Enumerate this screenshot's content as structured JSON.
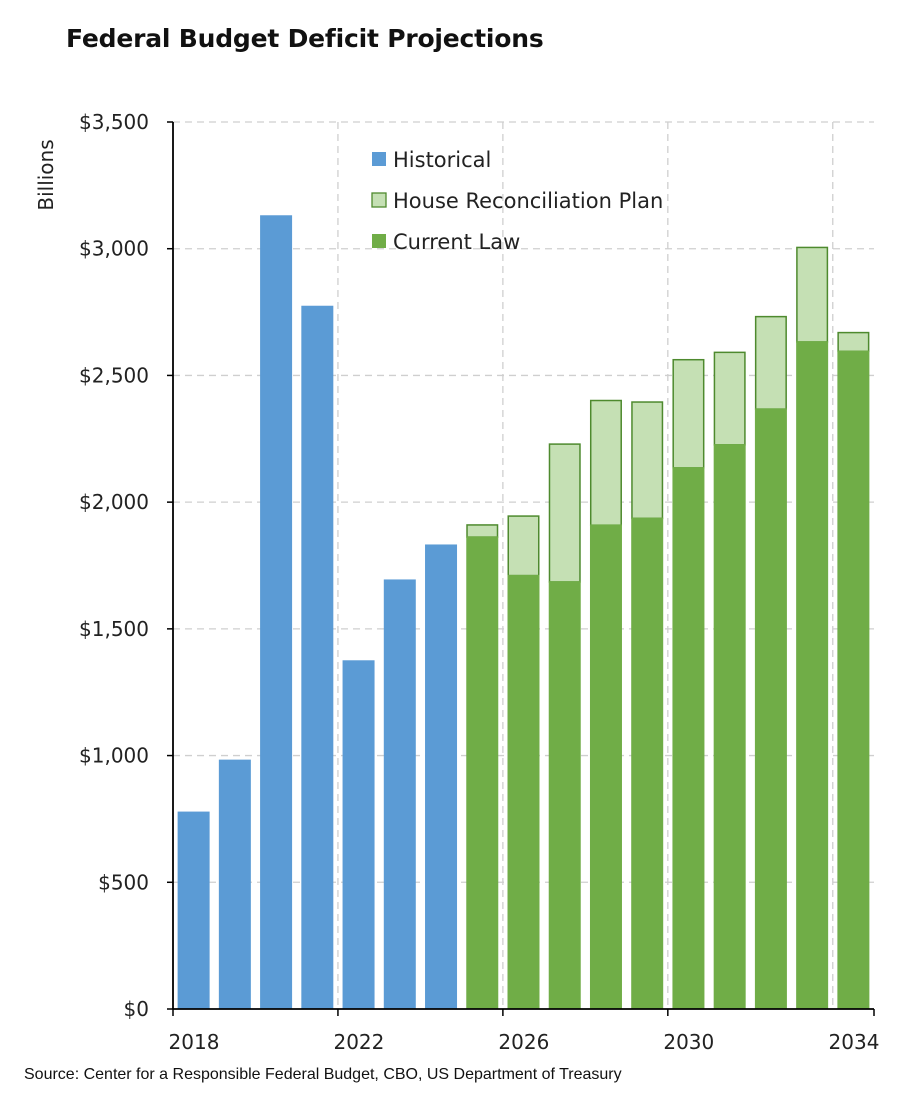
{
  "chart_data": {
    "type": "bar",
    "title": "Federal Budget Deficit Projections",
    "ylabel": "Billions",
    "ylim": [
      0,
      3500
    ],
    "yticks": [
      0,
      500,
      1000,
      1500,
      2000,
      2500,
      3000,
      3500
    ],
    "ytick_labels": [
      "$0",
      "$500",
      "$1,000",
      "$1,500",
      "$2,000",
      "$2,500",
      "$3,000",
      "$3,500"
    ],
    "categories": [
      2018,
      2019,
      2020,
      2021,
      2022,
      2023,
      2024,
      2025,
      2026,
      2027,
      2028,
      2029,
      2030,
      2031,
      2032,
      2033,
      2034
    ],
    "xtick_labels": [
      "2018",
      "2022",
      "2026",
      "2030",
      "2034"
    ],
    "xtick_years": [
      2018,
      2022,
      2026,
      2030,
      2034
    ],
    "grid": true,
    "legend_position": "top-center",
    "series": [
      {
        "name": "Historical",
        "color": "#5B9BD5",
        "values": [
          779,
          984,
          3132,
          2775,
          1376,
          1695,
          1833,
          null,
          null,
          null,
          null,
          null,
          null,
          null,
          null,
          null,
          null
        ]
      },
      {
        "name": "Current Law",
        "color": "#70AD47",
        "values": [
          null,
          null,
          null,
          null,
          null,
          null,
          null,
          1865,
          1713,
          1688,
          1912,
          1939,
          2138,
          2229,
          2370,
          2635,
          2598
        ]
      },
      {
        "name": "House Reconciliation Plan",
        "color": "#C5E0B4",
        "edge": "#4E8A2E",
        "values": [
          null,
          null,
          null,
          null,
          null,
          null,
          null,
          1913,
          1948,
          2232,
          2404,
          2398,
          2565,
          2594,
          2735,
          3008,
          2672
        ]
      }
    ],
    "legend": [
      "Historical",
      "House Reconciliation Plan",
      "Current Law"
    ],
    "source": "Source: Center for a Responsible Federal Budget, CBO, US Department of Treasury"
  }
}
